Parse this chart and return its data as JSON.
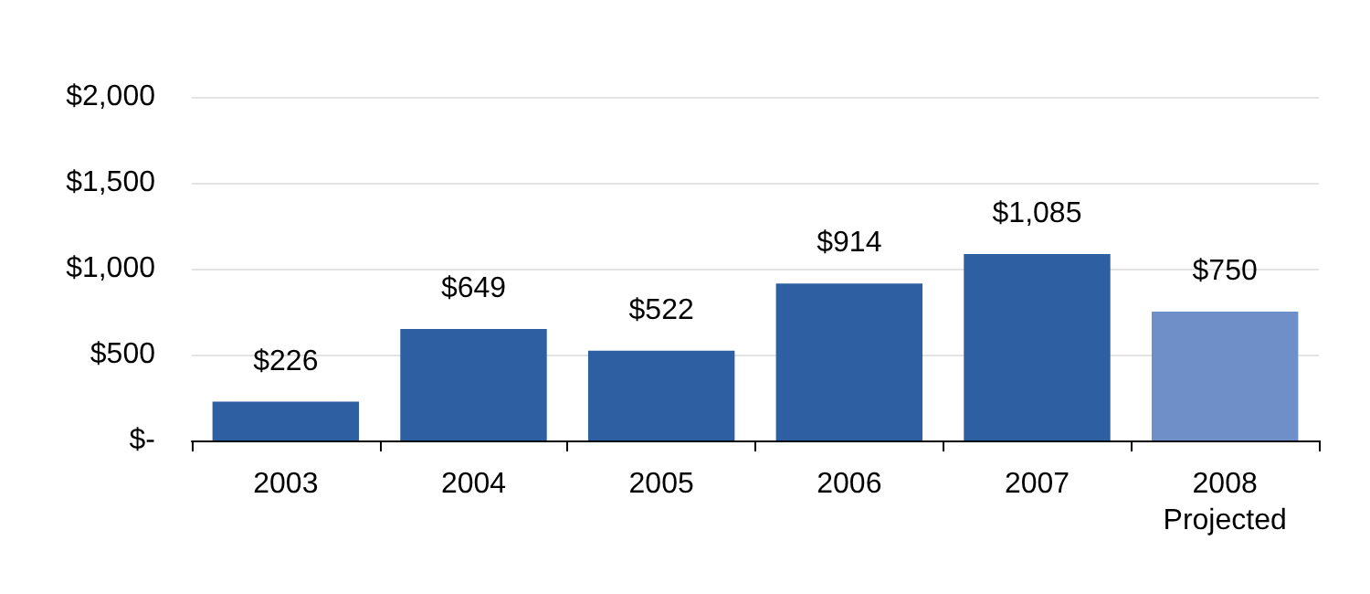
{
  "chart_data": {
    "type": "bar",
    "categories": [
      "2003",
      "2004",
      "2005",
      "2006",
      "2007",
      "2008\nProjected"
    ],
    "values": [
      226,
      649,
      522,
      914,
      1085,
      750
    ],
    "colors": [
      "#2e5fa3",
      "#2e5fa3",
      "#2e5fa3",
      "#2e5fa3",
      "#2e5fa3",
      "#6f8fc8"
    ],
    "value_labels": [
      "$226",
      "$649",
      "$522",
      "$914",
      "$1,085",
      "$750"
    ],
    "ylim": [
      0,
      2000
    ],
    "yticks": [
      {
        "value": 0,
        "label": "$-"
      },
      {
        "value": 500,
        "label": "$500"
      },
      {
        "value": 1000,
        "label": "$1,000"
      },
      {
        "value": 1500,
        "label": "$1,500"
      },
      {
        "value": 2000,
        "label": "$2,000"
      }
    ],
    "grid": "y"
  }
}
